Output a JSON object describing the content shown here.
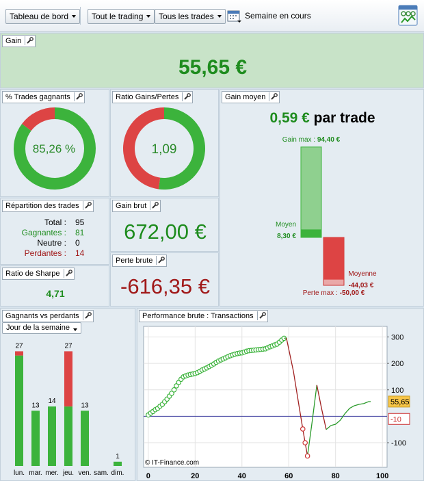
{
  "toolbar": {
    "dashboard": "Tableau de bord",
    "trading": "Tout le trading",
    "trades": "Tous les trades",
    "period": "Semaine en cours"
  },
  "gain": {
    "title": "Gain",
    "value": {
      "value": 55.65,
      "label": "55,65 €"
    }
  },
  "win_rate": {
    "title": "% Trades gagnants",
    "value": {
      "value": 85.26,
      "label": "85,26 %"
    },
    "colors": [
      "#3cb33c",
      "#dd4444"
    ]
  },
  "ratio": {
    "title": "Ratio Gains/Pertes",
    "value": {
      "value": 1.09,
      "label": "1,09"
    },
    "colors": [
      "#3cb33c",
      "#dd4444"
    ]
  },
  "avg_gain": {
    "title": "Gain moyen",
    "value": {
      "value": 0.59,
      "label": "0,59 €"
    },
    "unit": "par trade",
    "gain_max_label": "Gain max :",
    "gain_max": {
      "value": 94.4,
      "label": "94,40 €"
    },
    "avg_win_label": "Moyen",
    "avg_win": {
      "value": 8.3,
      "label": "8,30 €"
    },
    "avg_loss_label": "Moyenne",
    "avg_loss": {
      "value": -44.03,
      "label": "-44,03 €"
    },
    "loss_max_label": "Perte max :",
    "loss_max": {
      "value": -50.0,
      "label": "-50,00 €"
    }
  },
  "breakdown": {
    "title": "Répartition des trades",
    "rows": [
      {
        "label": "Total :",
        "value": 95
      },
      {
        "label": "Gagnantes :",
        "value": 81
      },
      {
        "label": "Neutre :",
        "value": 0
      },
      {
        "label": "Perdantes :",
        "value": 14
      }
    ]
  },
  "sharpe": {
    "title": "Ratio de Sharpe",
    "value": {
      "value": 4.71,
      "label": "4,71"
    }
  },
  "gross_gain": {
    "title": "Gain brut",
    "value": {
      "value": 672.0,
      "label": "672,00 €"
    }
  },
  "gross_loss": {
    "title": "Perte brute",
    "value": {
      "value": -616.35,
      "label": "-616,35 €"
    }
  },
  "chart_data": [
    {
      "type": "bar",
      "stacked": true,
      "title": "Gagnants vs perdants",
      "selector": "Jour de la semaine",
      "categories": [
        "lun.",
        "mar.",
        "mer.",
        "jeu.",
        "ven.",
        "sam.",
        "dim."
      ],
      "series": [
        {
          "color": "#3cb33c",
          "values": [
            26,
            13,
            14,
            14,
            13,
            0,
            1
          ]
        },
        {
          "color": "#dd4444",
          "values": [
            1,
            0,
            0,
            13,
            0,
            0,
            0
          ]
        }
      ],
      "totals": [
        27,
        13,
        14,
        27,
        13,
        null,
        1
      ],
      "ylim": [
        0,
        29
      ]
    },
    {
      "type": "line",
      "title": "Performance brute : Transactions",
      "xlim": [
        -2,
        102
      ],
      "ylim": [
        -193,
        340
      ],
      "xticks": [
        0,
        20,
        40,
        60,
        80,
        100
      ],
      "yticks": [
        -100,
        100,
        200,
        300
      ],
      "grid": true,
      "up_color": "#2a9a2a",
      "down_color": "#a02020",
      "zero_line_color": "#333399",
      "series": [
        {
          "color": "#3cb33c",
          "line": true,
          "markers": true,
          "x": [
            0,
            1,
            2,
            3,
            4,
            5,
            6,
            7,
            8,
            9,
            10,
            11,
            12,
            13,
            14,
            15,
            16,
            17,
            18,
            19,
            20,
            21,
            22,
            23,
            24,
            25,
            26,
            27,
            28,
            29,
            30,
            31,
            32,
            33,
            34,
            35,
            36,
            37,
            38,
            39,
            40,
            41,
            42,
            43,
            44,
            45,
            46,
            47,
            48,
            49,
            50,
            51,
            52,
            53,
            54,
            55,
            56,
            57,
            58
          ],
          "values": [
            5,
            12,
            18,
            25,
            30,
            38,
            45,
            55,
            65,
            76,
            87,
            100,
            115,
            128,
            140,
            149,
            153,
            156,
            158,
            160,
            162,
            165,
            170,
            175,
            179,
            183,
            188,
            193,
            198,
            204,
            209,
            213,
            217,
            221,
            225,
            229,
            232,
            235,
            237,
            239,
            240,
            243,
            246,
            248,
            249,
            250,
            251,
            252,
            253,
            254,
            255,
            259,
            263,
            266,
            270,
            273,
            280,
            288,
            295
          ]
        },
        {
          "color": "#2a9a2a",
          "line": true,
          "markers": false,
          "x": [
            58,
            59,
            62,
            64,
            66,
            67,
            68,
            70,
            72,
            74,
            76,
            78,
            80,
            82,
            84,
            86,
            88,
            90,
            92,
            94,
            95
          ],
          "values": [
            295,
            296,
            170,
            60,
            -48,
            -100,
            -150,
            -20,
            118,
            30,
            -50,
            -35,
            -30,
            -15,
            10,
            30,
            40,
            45,
            48,
            55,
            55.65
          ]
        },
        {
          "color": "#cc3333",
          "line": false,
          "markers": true,
          "x": [
            66,
            67,
            68
          ],
          "values": [
            -48,
            -100,
            -150
          ]
        }
      ],
      "annotations": [
        {
          "value": 55.65,
          "label": "55,65",
          "color": "#f7c548"
        },
        {
          "value": -10,
          "label": "-10",
          "color": "#cc3333"
        }
      ],
      "credit": "© IT-Finance.com"
    }
  ]
}
